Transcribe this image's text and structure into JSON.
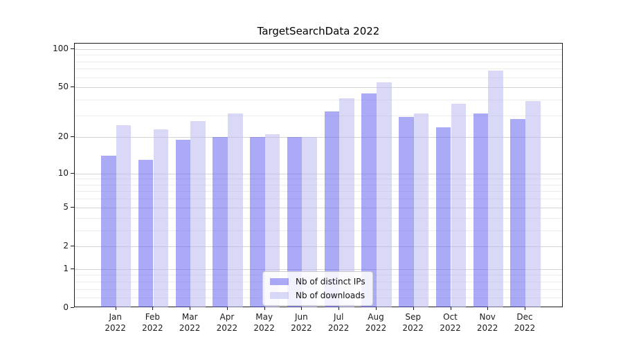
{
  "chart_data": {
    "type": "bar",
    "title": "TargetSearchData 2022",
    "categories": [
      "Jan",
      "Feb",
      "Mar",
      "Apr",
      "May",
      "Jun",
      "Jul",
      "Aug",
      "Sep",
      "Oct",
      "Nov",
      "Dec"
    ],
    "year_label": "2022",
    "series": [
      {
        "name": "Nb of distinct IPs",
        "color": "rgba(85,85,240,0.5)",
        "values": [
          14,
          13,
          19,
          20,
          20,
          20,
          32,
          45,
          29,
          24,
          31,
          28
        ]
      },
      {
        "name": "Nb of downloads",
        "color": "rgba(185,185,240,0.55)",
        "values": [
          25,
          23,
          27,
          31,
          21,
          20,
          41,
          55,
          31,
          37,
          68,
          39
        ]
      }
    ],
    "yscale": "log1p",
    "yticks": [
      0,
      1,
      2,
      5,
      10,
      20,
      50,
      100
    ],
    "minor_gridlines": [
      0.2,
      0.4,
      0.6,
      0.8,
      3,
      4,
      6,
      7,
      8,
      9,
      30,
      40,
      60,
      70,
      80,
      90
    ],
    "ylim": [
      0,
      110
    ],
    "grid": true,
    "legend_position": "lower-center"
  }
}
